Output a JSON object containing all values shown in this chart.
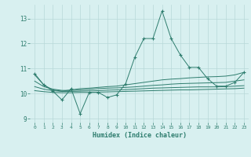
{
  "xlabel": "Humidex (Indice chaleur)",
  "x_values": [
    0,
    1,
    2,
    3,
    4,
    5,
    6,
    7,
    8,
    9,
    10,
    11,
    12,
    13,
    14,
    15,
    16,
    17,
    18,
    19,
    20,
    21,
    22,
    23
  ],
  "main_line": [
    10.8,
    10.35,
    10.1,
    9.75,
    10.2,
    9.2,
    10.05,
    10.05,
    9.85,
    9.95,
    10.4,
    11.45,
    12.2,
    12.2,
    13.3,
    12.2,
    11.55,
    11.05,
    11.05,
    10.6,
    10.3,
    10.3,
    10.45,
    10.85
  ],
  "line2": [
    10.75,
    10.35,
    10.15,
    10.1,
    10.15,
    10.2,
    10.22,
    10.25,
    10.28,
    10.3,
    10.35,
    10.4,
    10.45,
    10.5,
    10.55,
    10.58,
    10.6,
    10.63,
    10.65,
    10.67,
    10.68,
    10.7,
    10.75,
    10.85
  ],
  "line3": [
    10.5,
    10.28,
    10.18,
    10.13,
    10.13,
    10.15,
    10.17,
    10.2,
    10.22,
    10.23,
    10.25,
    10.27,
    10.3,
    10.33,
    10.35,
    10.38,
    10.4,
    10.41,
    10.42,
    10.43,
    10.44,
    10.45,
    10.5,
    10.55
  ],
  "line4": [
    10.28,
    10.18,
    10.12,
    10.09,
    10.09,
    10.1,
    10.11,
    10.12,
    10.14,
    10.15,
    10.16,
    10.18,
    10.2,
    10.22,
    10.23,
    10.24,
    10.25,
    10.26,
    10.27,
    10.27,
    10.27,
    10.28,
    10.3,
    10.32
  ],
  "line5": [
    10.12,
    10.08,
    10.05,
    10.04,
    10.04,
    10.05,
    10.05,
    10.06,
    10.07,
    10.08,
    10.09,
    10.1,
    10.11,
    10.12,
    10.13,
    10.14,
    10.15,
    10.15,
    10.16,
    10.17,
    10.18,
    10.19,
    10.2,
    10.22
  ],
  "line_color": "#2e7d6e",
  "bg_color": "#d8f0f0",
  "grid_color": "#b8d8d8",
  "ylim": [
    8.85,
    13.55
  ],
  "yticks": [
    9,
    10,
    11,
    12,
    13
  ],
  "xticks": [
    0,
    1,
    2,
    3,
    4,
    5,
    6,
    7,
    8,
    9,
    10,
    11,
    12,
    13,
    14,
    15,
    16,
    17,
    18,
    19,
    20,
    21,
    22,
    23
  ]
}
